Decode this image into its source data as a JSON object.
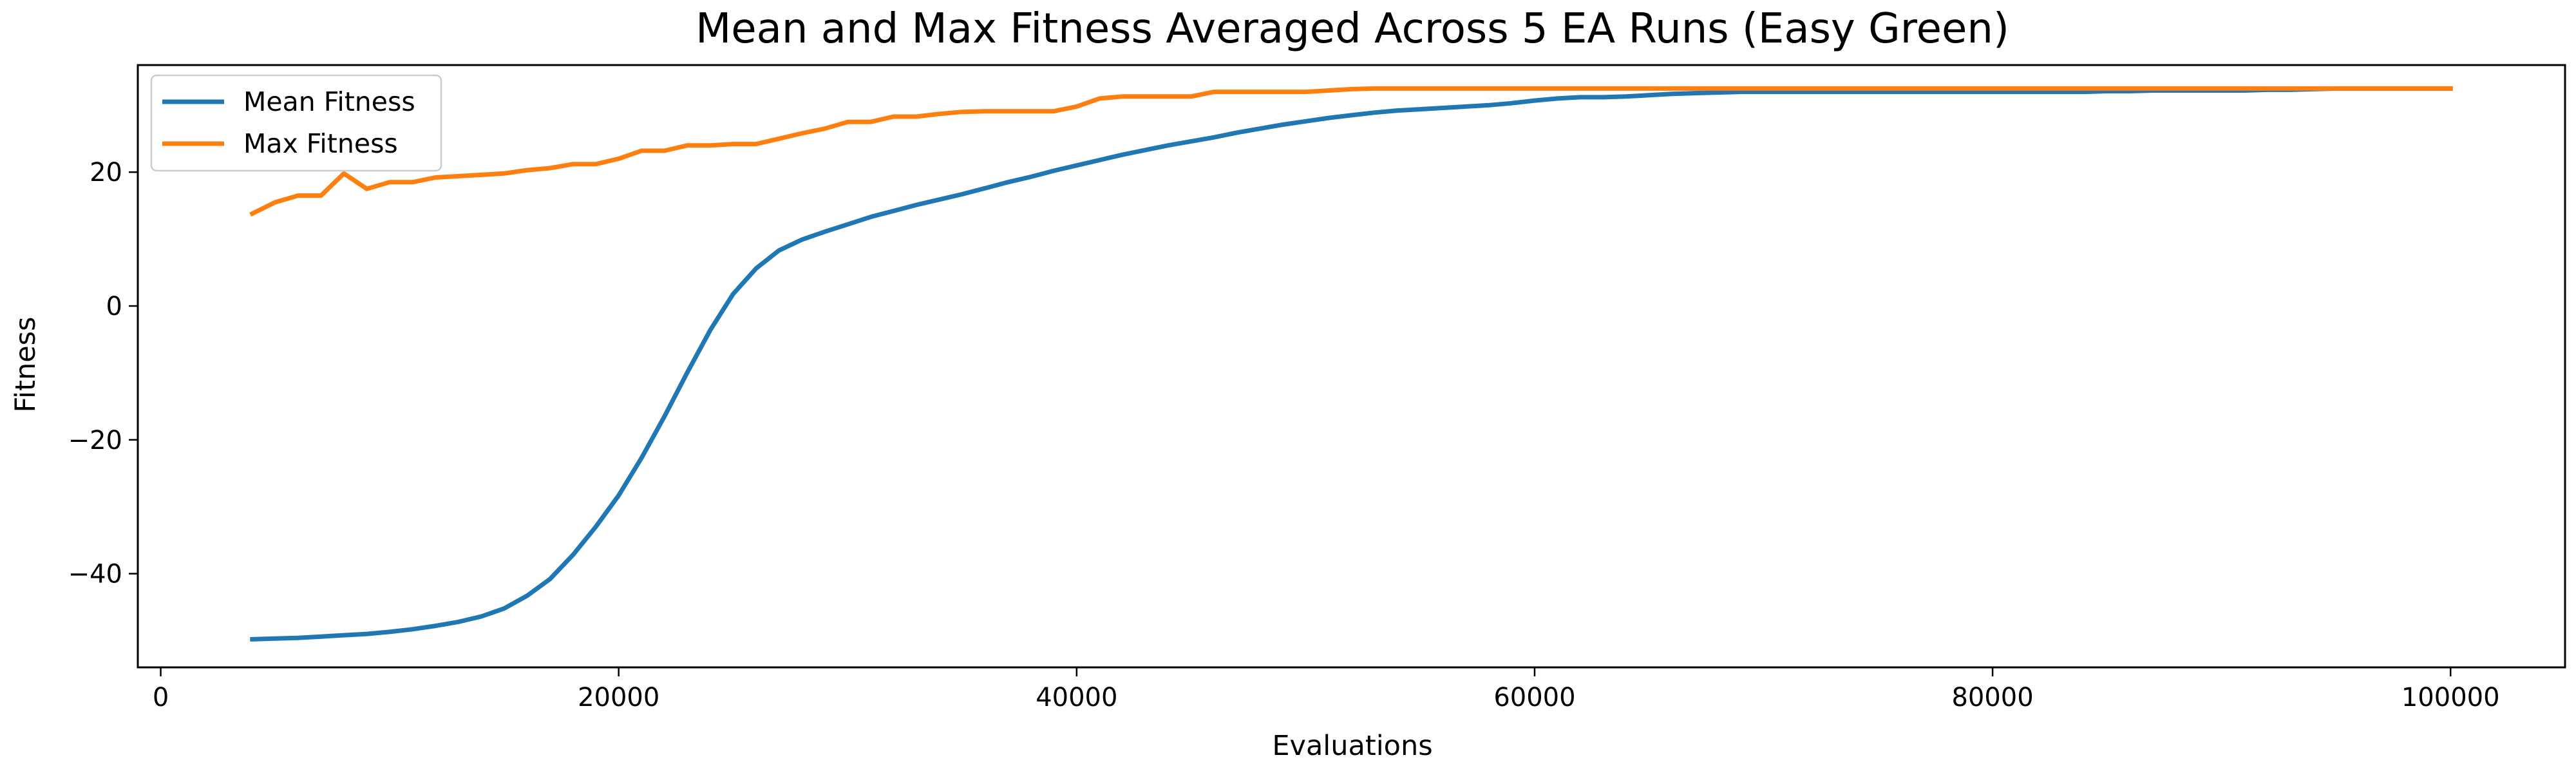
{
  "chart_data": {
    "type": "line",
    "title": "Mean and Max Fitness Averaged Across 5 EA Runs (Easy Green)",
    "xlabel": "Evaluations",
    "ylabel": "Fitness",
    "xlim": [
      -1000,
      105000
    ],
    "ylim": [
      -54,
      36
    ],
    "xticks": [
      0,
      20000,
      40000,
      60000,
      80000,
      100000
    ],
    "xtick_labels": [
      "0",
      "20000",
      "40000",
      "60000",
      "80000",
      "100000"
    ],
    "yticks": [
      -40,
      -20,
      0,
      20
    ],
    "ytick_labels": [
      "−40",
      "−20",
      "0",
      "20"
    ],
    "grid": false,
    "legend_position": "top-left",
    "x": [
      4000,
      5000,
      6000,
      7000,
      8000,
      9000,
      10000,
      11000,
      12000,
      13000,
      14000,
      15000,
      16000,
      17000,
      18000,
      19000,
      20000,
      21000,
      22000,
      23000,
      24000,
      25000,
      26000,
      27000,
      28000,
      29000,
      30000,
      31000,
      32000,
      33000,
      34000,
      35000,
      36000,
      37000,
      38000,
      39000,
      40000,
      41000,
      42000,
      43000,
      44000,
      45000,
      46000,
      47000,
      48000,
      49000,
      50000,
      51000,
      52000,
      53000,
      54000,
      55000,
      56000,
      57000,
      58000,
      59000,
      60000,
      61000,
      62000,
      63000,
      64000,
      65000,
      66000,
      67000,
      68000,
      69000,
      70000,
      71000,
      72000,
      73000,
      74000,
      75000,
      76000,
      77000,
      78000,
      79000,
      80000,
      81000,
      82000,
      83000,
      84000,
      85000,
      86000,
      87000,
      88000,
      89000,
      90000,
      91000,
      92000,
      93000,
      94000,
      95000,
      96000,
      97000,
      98000,
      99000,
      100000
    ],
    "series": [
      {
        "name": "Mean Fitness",
        "color": "#1f77b4",
        "values": [
          -49.8,
          -49.7,
          -49.6,
          -49.4,
          -49.2,
          -49.0,
          -48.7,
          -48.3,
          -47.8,
          -47.2,
          -46.4,
          -45.2,
          -43.3,
          -40.8,
          -37.2,
          -33.0,
          -28.3,
          -22.7,
          -16.5,
          -9.9,
          -3.6,
          1.8,
          5.6,
          8.3,
          9.9,
          11.1,
          12.2,
          13.3,
          14.2,
          15.1,
          15.9,
          16.7,
          17.6,
          18.5,
          19.3,
          20.2,
          21.0,
          21.8,
          22.6,
          23.3,
          24.0,
          24.6,
          25.2,
          25.9,
          26.5,
          27.1,
          27.6,
          28.1,
          28.5,
          28.9,
          29.2,
          29.4,
          29.6,
          29.8,
          30.0,
          30.3,
          30.7,
          31.0,
          31.2,
          31.2,
          31.3,
          31.5,
          31.7,
          31.8,
          31.9,
          32.0,
          32.0,
          32.0,
          32.0,
          32.0,
          32.0,
          32.0,
          32.0,
          32.0,
          32.0,
          32.0,
          32.0,
          32.0,
          32.0,
          32.0,
          32.0,
          32.1,
          32.1,
          32.2,
          32.2,
          32.2,
          32.2,
          32.2,
          32.3,
          32.3,
          32.4,
          32.5,
          32.5,
          32.5,
          32.5,
          32.5,
          32.5
        ]
      },
      {
        "name": "Max Fitness",
        "color": "#ff7f0e",
        "values": [
          13.8,
          15.5,
          16.5,
          16.5,
          19.8,
          17.5,
          18.5,
          18.5,
          19.2,
          19.4,
          19.6,
          19.8,
          20.3,
          20.6,
          21.2,
          21.2,
          22.0,
          23.2,
          23.2,
          24.0,
          24.0,
          24.2,
          24.2,
          25.0,
          25.8,
          26.5,
          27.5,
          27.5,
          28.3,
          28.3,
          28.7,
          29.0,
          29.1,
          29.1,
          29.1,
          29.1,
          29.8,
          31.0,
          31.3,
          31.3,
          31.3,
          31.3,
          32.0,
          32.0,
          32.0,
          32.0,
          32.0,
          32.2,
          32.4,
          32.5,
          32.5,
          32.5,
          32.5,
          32.5,
          32.5,
          32.5,
          32.5,
          32.5,
          32.5,
          32.5,
          32.5,
          32.5,
          32.5,
          32.5,
          32.5,
          32.5,
          32.5,
          32.5,
          32.5,
          32.5,
          32.5,
          32.5,
          32.5,
          32.5,
          32.5,
          32.5,
          32.5,
          32.5,
          32.5,
          32.5,
          32.5,
          32.5,
          32.5,
          32.5,
          32.5,
          32.5,
          32.5,
          32.5,
          32.5,
          32.5,
          32.5,
          32.5,
          32.5,
          32.5,
          32.5,
          32.5,
          32.5
        ]
      }
    ]
  }
}
